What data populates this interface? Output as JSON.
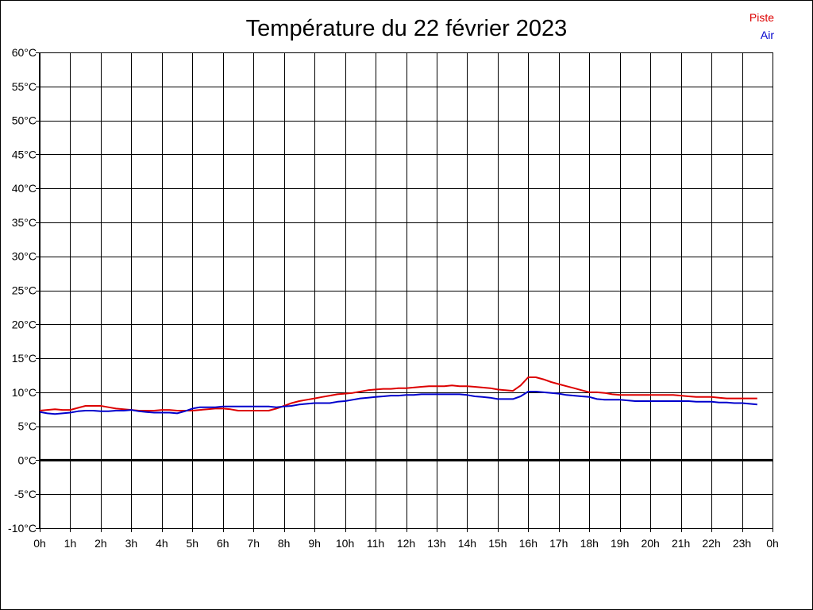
{
  "chart_data": {
    "type": "line",
    "title": "Température du 22 février 2023",
    "x_ticks": [
      "0h",
      "1h",
      "2h",
      "3h",
      "4h",
      "5h",
      "6h",
      "7h",
      "8h",
      "9h",
      "10h",
      "11h",
      "12h",
      "13h",
      "14h",
      "15h",
      "16h",
      "17h",
      "18h",
      "19h",
      "20h",
      "21h",
      "22h",
      "23h",
      "0h"
    ],
    "xlim": [
      0,
      24
    ],
    "y_ticks": [
      "60°C",
      "55°C",
      "50°C",
      "45°C",
      "40°C",
      "35°C",
      "30°C",
      "25°C",
      "20°C",
      "15°C",
      "10°C",
      "5°C",
      "0°C",
      "-5°C",
      "-10°C"
    ],
    "ylim": [
      -10,
      60
    ],
    "grid": true,
    "legend_position": "top-right",
    "series": [
      {
        "name": "Piste",
        "color": "#dd0000",
        "x": [
          0,
          0.25,
          0.5,
          0.75,
          1,
          1.25,
          1.5,
          1.75,
          2,
          2.25,
          2.5,
          2.75,
          3,
          3.25,
          3.5,
          3.75,
          4,
          4.25,
          4.5,
          4.75,
          5,
          5.25,
          5.5,
          5.75,
          6,
          6.25,
          6.5,
          6.75,
          7,
          7.25,
          7.5,
          7.75,
          8,
          8.25,
          8.5,
          8.75,
          9,
          9.25,
          9.5,
          9.75,
          10,
          10.25,
          10.5,
          10.75,
          11,
          11.25,
          11.5,
          11.75,
          12,
          12.25,
          12.5,
          12.75,
          13,
          13.25,
          13.5,
          13.75,
          14,
          14.25,
          14.5,
          14.75,
          15,
          15.25,
          15.5,
          15.75,
          16,
          16.25,
          16.5,
          16.75,
          17,
          17.25,
          17.5,
          17.75,
          18,
          18.25,
          18.5,
          18.75,
          19,
          19.25,
          19.5,
          19.75,
          20,
          20.25,
          20.5,
          20.75,
          21,
          21.25,
          21.5,
          21.75,
          22,
          22.25,
          22.5,
          22.75,
          23,
          23.25,
          23.5
        ],
        "y": [
          7.3,
          7.4,
          7.5,
          7.4,
          7.4,
          7.7,
          8.0,
          8.0,
          8.0,
          7.8,
          7.6,
          7.5,
          7.4,
          7.3,
          7.3,
          7.3,
          7.4,
          7.4,
          7.3,
          7.3,
          7.3,
          7.4,
          7.5,
          7.6,
          7.6,
          7.5,
          7.3,
          7.3,
          7.3,
          7.3,
          7.3,
          7.6,
          8.0,
          8.4,
          8.7,
          8.9,
          9.1,
          9.3,
          9.5,
          9.7,
          9.8,
          9.9,
          10.1,
          10.3,
          10.4,
          10.5,
          10.5,
          10.6,
          10.6,
          10.7,
          10.8,
          10.9,
          10.9,
          10.9,
          11.0,
          10.9,
          10.9,
          10.8,
          10.7,
          10.6,
          10.4,
          10.3,
          10.2,
          11.0,
          12.2,
          12.2,
          11.9,
          11.5,
          11.2,
          10.9,
          10.6,
          10.3,
          10.0,
          10.0,
          9.9,
          9.7,
          9.6,
          9.6,
          9.6,
          9.6,
          9.6,
          9.6,
          9.6,
          9.6,
          9.5,
          9.4,
          9.3,
          9.3,
          9.3,
          9.2,
          9.1,
          9.1,
          9.1,
          9.1,
          9.1
        ]
      },
      {
        "name": "Air",
        "color": "#0000cc",
        "x": [
          0,
          0.25,
          0.5,
          0.75,
          1,
          1.25,
          1.5,
          1.75,
          2,
          2.25,
          2.5,
          2.75,
          3,
          3.25,
          3.5,
          3.75,
          4,
          4.25,
          4.5,
          4.75,
          5,
          5.25,
          5.5,
          5.75,
          6,
          6.25,
          6.5,
          6.75,
          7,
          7.25,
          7.5,
          7.75,
          8,
          8.25,
          8.5,
          8.75,
          9,
          9.25,
          9.5,
          9.75,
          10,
          10.25,
          10.5,
          10.75,
          11,
          11.25,
          11.5,
          11.75,
          12,
          12.25,
          12.5,
          12.75,
          13,
          13.25,
          13.5,
          13.75,
          14,
          14.25,
          14.5,
          14.75,
          15,
          15.25,
          15.5,
          15.75,
          16,
          16.25,
          16.5,
          16.75,
          17,
          17.25,
          17.5,
          17.75,
          18,
          18.25,
          18.5,
          18.75,
          19,
          19.25,
          19.5,
          19.75,
          20,
          20.25,
          20.5,
          20.75,
          21,
          21.25,
          21.5,
          21.75,
          22,
          22.25,
          22.5,
          22.75,
          23,
          23.25,
          23.5
        ],
        "y": [
          7.1,
          6.9,
          6.8,
          6.9,
          7.0,
          7.2,
          7.3,
          7.3,
          7.2,
          7.2,
          7.3,
          7.3,
          7.4,
          7.2,
          7.1,
          7.0,
          7.0,
          7.0,
          6.9,
          7.2,
          7.6,
          7.8,
          7.8,
          7.8,
          7.9,
          7.9,
          7.9,
          7.9,
          7.9,
          7.9,
          7.9,
          7.8,
          7.9,
          8.0,
          8.2,
          8.3,
          8.4,
          8.4,
          8.4,
          8.6,
          8.7,
          8.9,
          9.1,
          9.2,
          9.3,
          9.4,
          9.5,
          9.5,
          9.6,
          9.6,
          9.7,
          9.7,
          9.7,
          9.7,
          9.7,
          9.7,
          9.6,
          9.4,
          9.3,
          9.2,
          9.0,
          9.0,
          9.0,
          9.4,
          10.1,
          10.1,
          10.0,
          9.9,
          9.8,
          9.6,
          9.5,
          9.4,
          9.3,
          9.0,
          8.9,
          8.9,
          8.9,
          8.8,
          8.7,
          8.7,
          8.7,
          8.7,
          8.7,
          8.7,
          8.7,
          8.7,
          8.6,
          8.6,
          8.6,
          8.5,
          8.5,
          8.4,
          8.4,
          8.3,
          8.2
        ]
      }
    ]
  }
}
